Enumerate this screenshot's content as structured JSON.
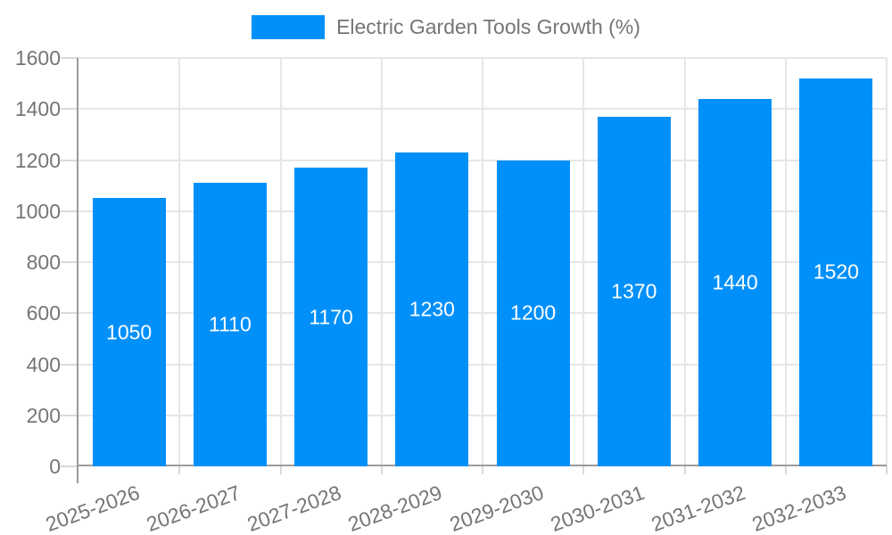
{
  "legend": {
    "position": "top"
  },
  "chart_data": {
    "type": "bar",
    "title": "",
    "series_name": "Electric Garden Tools Growth (%)",
    "categories": [
      "2025-2026",
      "2026-2027",
      "2027-2028",
      "2028-2029",
      "2029-2030",
      "2030-2031",
      "2031-2032",
      "2032-2033"
    ],
    "values": [
      1050,
      1110,
      1170,
      1230,
      1200,
      1370,
      1440,
      1520
    ],
    "value_labels": [
      "1050",
      "1110",
      "1170",
      "1230",
      "1200",
      "1370",
      "1440",
      "1520"
    ],
    "xlabel": "",
    "ylabel": "",
    "ylim": [
      0,
      1600
    ],
    "ytick_step": 200,
    "yticks": [
      0,
      200,
      400,
      600,
      800,
      1000,
      1200,
      1400,
      1600
    ],
    "grid": true,
    "legend_position": "top",
    "x_label_rotation_deg": -20,
    "colors": {
      "bar": "#0190fa",
      "bar_label": "#ffffff",
      "text": "#757575",
      "grid": "#e6e6e6",
      "axis": "#9b9b9b",
      "tick": "#d9d9d9"
    }
  }
}
